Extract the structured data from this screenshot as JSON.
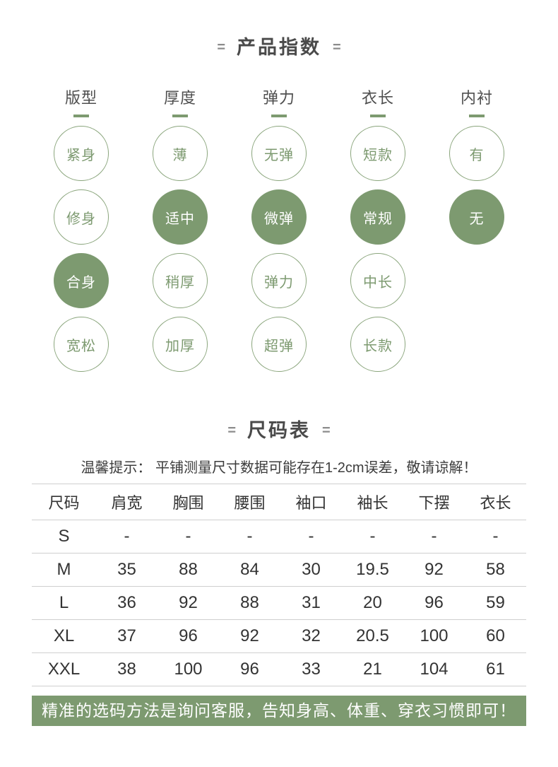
{
  "product_index": {
    "title": "产品指数",
    "title_decor": "=",
    "columns": [
      {
        "header": "版型",
        "options": [
          {
            "label": "紧身",
            "selected": false
          },
          {
            "label": "修身",
            "selected": false
          },
          {
            "label": "合身",
            "selected": true
          },
          {
            "label": "宽松",
            "selected": false
          }
        ]
      },
      {
        "header": "厚度",
        "options": [
          {
            "label": "薄",
            "selected": false
          },
          {
            "label": "适中",
            "selected": true
          },
          {
            "label": "稍厚",
            "selected": false
          },
          {
            "label": "加厚",
            "selected": false
          }
        ]
      },
      {
        "header": "弹力",
        "options": [
          {
            "label": "无弹",
            "selected": false
          },
          {
            "label": "微弹",
            "selected": true
          },
          {
            "label": "弹力",
            "selected": false
          },
          {
            "label": "超弹",
            "selected": false
          }
        ]
      },
      {
        "header": "衣长",
        "options": [
          {
            "label": "短款",
            "selected": false
          },
          {
            "label": "常规",
            "selected": true
          },
          {
            "label": "中长",
            "selected": false
          },
          {
            "label": "长款",
            "selected": false
          }
        ]
      },
      {
        "header": "内衬",
        "options": [
          {
            "label": "有",
            "selected": false
          },
          {
            "label": "无",
            "selected": true
          }
        ]
      }
    ]
  },
  "size_chart": {
    "title": "尺码表",
    "title_decor": "=",
    "note": "温馨提示： 平铺测量尺寸数据可能存在1-2cm误差，敬请谅解！",
    "columns": [
      "尺码",
      "肩宽",
      "胸围",
      "腰围",
      "袖口",
      "袖长",
      "下摆",
      "衣长"
    ],
    "rows": [
      [
        "S",
        "-",
        "-",
        "-",
        "-",
        "-",
        "-",
        "-"
      ],
      [
        "M",
        "35",
        "88",
        "84",
        "30",
        "19.5",
        "92",
        "58"
      ],
      [
        "L",
        "36",
        "92",
        "88",
        "31",
        "20",
        "96",
        "59"
      ],
      [
        "XL",
        "37",
        "96",
        "92",
        "32",
        "20.5",
        "100",
        "60"
      ],
      [
        "XXL",
        "38",
        "100",
        "96",
        "33",
        "21",
        "104",
        "61"
      ]
    ]
  },
  "footer_banner": {
    "text": "精准的选码方法是询问客服，告知身高、体重、穿衣习惯即可！"
  },
  "colors": {
    "accent_green": "#7d9a70",
    "circle_border_green": "#8aa57c",
    "banner_green": "#7d9a70",
    "heading_text": "#4a4a4a",
    "table_line_gray": "#cfcfcf"
  }
}
